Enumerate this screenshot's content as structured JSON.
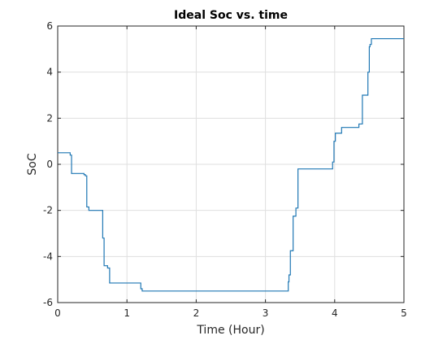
{
  "chart_data": {
    "type": "line",
    "title": "Ideal Soc vs. time",
    "xlabel": "Time (Hour)",
    "ylabel": "SoC",
    "xlim": [
      0,
      5
    ],
    "ylim": [
      -6,
      6
    ],
    "xticks": [
      "0",
      "1",
      "2",
      "3",
      "4",
      "5"
    ],
    "yticks": [
      "-6",
      "-4",
      "-2",
      "0",
      "2",
      "4",
      "6"
    ],
    "grid": true,
    "line_color": "#1f77b4",
    "series": [
      {
        "x": [
          0,
          0.18,
          0.18,
          0.2,
          0.2,
          0.38,
          0.38,
          0.4,
          0.4,
          0.42,
          0.42,
          0.45,
          0.45,
          0.65,
          0.65,
          0.67,
          0.67,
          0.72,
          0.72,
          0.75,
          0.75,
          1.2,
          1.2,
          1.22,
          1.22,
          3.33,
          3.33,
          3.34,
          3.34,
          3.36,
          3.36,
          3.4,
          3.4,
          3.44,
          3.44,
          3.47,
          3.47,
          3.97,
          3.97,
          3.99,
          3.99,
          4.01,
          4.01,
          4.1,
          4.1,
          4.35,
          4.35,
          4.4,
          4.4,
          4.48,
          4.48,
          4.5,
          4.5,
          4.51,
          4.51,
          4.53,
          4.53,
          4.56,
          4.56,
          5
        ],
        "y": [
          0.5,
          0.5,
          0.4,
          0.4,
          -0.4,
          -0.4,
          -0.45,
          -0.45,
          -0.5,
          -0.5,
          -1.85,
          -1.85,
          -2.0,
          -2.0,
          -3.2,
          -3.2,
          -4.4,
          -4.4,
          -4.5,
          -4.5,
          -5.15,
          -5.15,
          -5.4,
          -5.4,
          -5.5,
          -5.5,
          -5.1,
          -5.1,
          -4.8,
          -4.8,
          -3.75,
          -3.75,
          -2.25,
          -2.25,
          -1.9,
          -1.9,
          -0.2,
          -0.2,
          0.1,
          0.1,
          1.0,
          1.0,
          1.35,
          1.35,
          1.6,
          1.6,
          1.75,
          1.75,
          3.0,
          3.0,
          4.0,
          4.0,
          5.1,
          5.1,
          5.2,
          5.2,
          5.45,
          5.45,
          5.45,
          5.45
        ]
      }
    ]
  }
}
